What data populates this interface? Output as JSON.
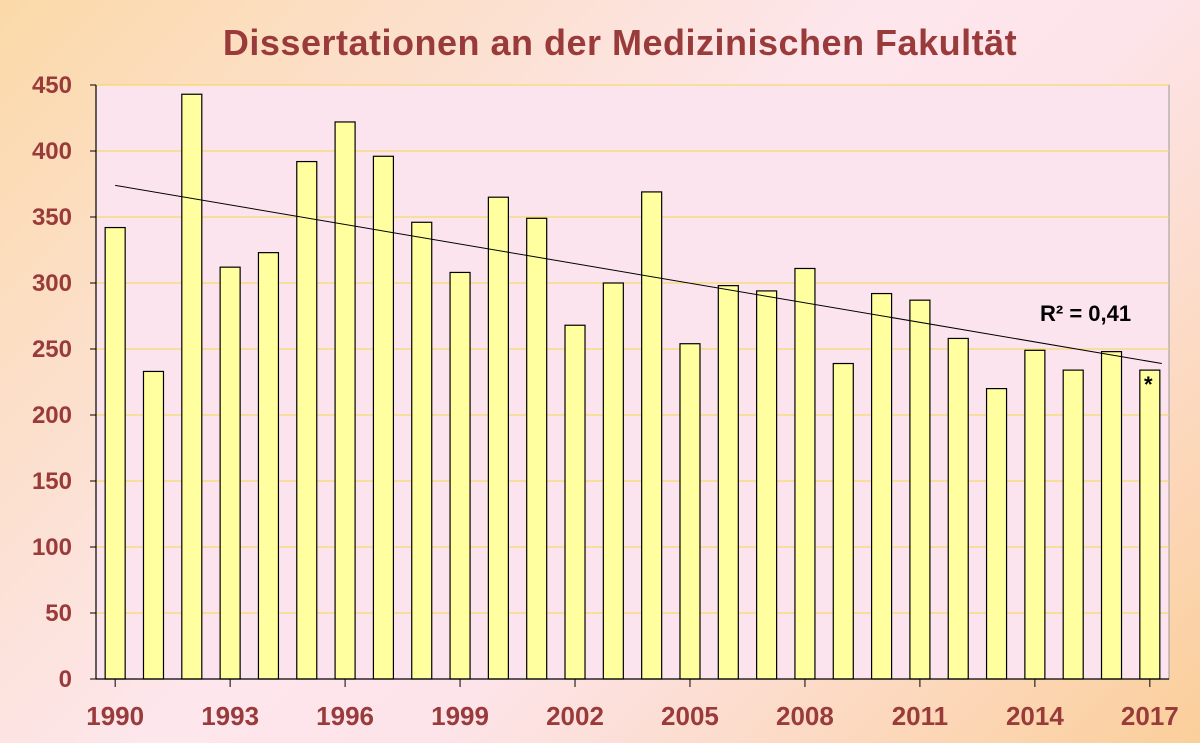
{
  "chart_data": {
    "type": "bar",
    "title": "Dissertationen an der Medizinischen Fakultät",
    "xlabel": "",
    "ylabel": "",
    "ylim": [
      0,
      450
    ],
    "yticks": [
      "0",
      "50",
      "100",
      "150",
      "200",
      "250",
      "300",
      "350",
      "400",
      "450"
    ],
    "grid": true,
    "categories": [
      "1990",
      "1991",
      "1992",
      "1993",
      "1994",
      "1995",
      "1996",
      "1997",
      "1998",
      "1999",
      "2000",
      "2001",
      "2002",
      "2003",
      "2004",
      "2005",
      "2006",
      "2007",
      "2008",
      "2009",
      "2010",
      "2011",
      "2012",
      "2013",
      "2014",
      "2015",
      "2016",
      "2017"
    ],
    "xtick_labels": [
      "1990",
      "1993",
      "1996",
      "1999",
      "2002",
      "2005",
      "2008",
      "2011",
      "2014",
      "2017"
    ],
    "values": [
      342,
      233,
      443,
      312,
      323,
      392,
      422,
      396,
      346,
      308,
      365,
      349,
      268,
      300,
      369,
      254,
      298,
      294,
      311,
      239,
      292,
      287,
      258,
      220,
      249,
      234,
      248,
      234
    ],
    "trendline": {
      "start": 374,
      "end": 239
    },
    "annotations": {
      "r_squared": "R² = 0,41",
      "last_bar_marker": "*"
    },
    "colors": {
      "bar_fill": "#ffffa0",
      "bar_stroke": "#000000",
      "plot_bg": "#fce4ee",
      "grid": "#f2d94a",
      "text": "#9a3b3b"
    }
  }
}
